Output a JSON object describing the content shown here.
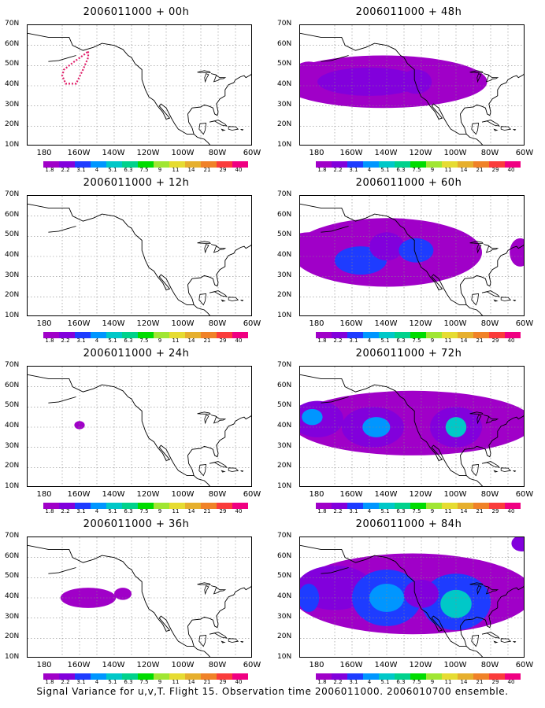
{
  "panels": [
    {
      "title": "2006011000 + 00h",
      "blobs": []
    },
    {
      "title": "2006011000 + 48h",
      "blobs": []
    },
    {
      "title": "2006011000 + 12h",
      "blobs": []
    },
    {
      "title": "2006011000 + 60h",
      "blobs": []
    },
    {
      "title": "2006011000 + 24h",
      "blobs": []
    },
    {
      "title": "2006011000 + 72h",
      "blobs": []
    },
    {
      "title": "2006011000 + 36h",
      "blobs": []
    },
    {
      "title": "2006011000 + 84h",
      "blobs": []
    }
  ],
  "y_ticks": [
    "70N",
    "60N",
    "50N",
    "40N",
    "30N",
    "20N",
    "10N"
  ],
  "x_ticks": [
    "180",
    "160W",
    "140W",
    "120W",
    "100W",
    "80W",
    "60W"
  ],
  "colorbar": {
    "labels": [
      "1.8",
      "2.2",
      "3.1",
      "4",
      "5.1",
      "6.3",
      "7.5",
      "9",
      "11",
      "14",
      "21",
      "29",
      "40"
    ],
    "colors": [
      "#a000c8",
      "#8200dc",
      "#1e3cff",
      "#0096ff",
      "#00c8c8",
      "#00d28c",
      "#00dc00",
      "#a0e632",
      "#e6dc32",
      "#e6af2d",
      "#f08228",
      "#fa3c3c",
      "#f00082"
    ]
  },
  "caption": "Signal Variance for u,v,T. Flight 15. Observation time 2006011000. 2006010700 ensemble.",
  "legend_colors": {
    "purple": "#a000c8",
    "violet": "#8200dc",
    "blue": "#1e3cff",
    "sky": "#0096ff",
    "cyan": "#00c8c8",
    "flight_track": "#e0206a"
  }
}
